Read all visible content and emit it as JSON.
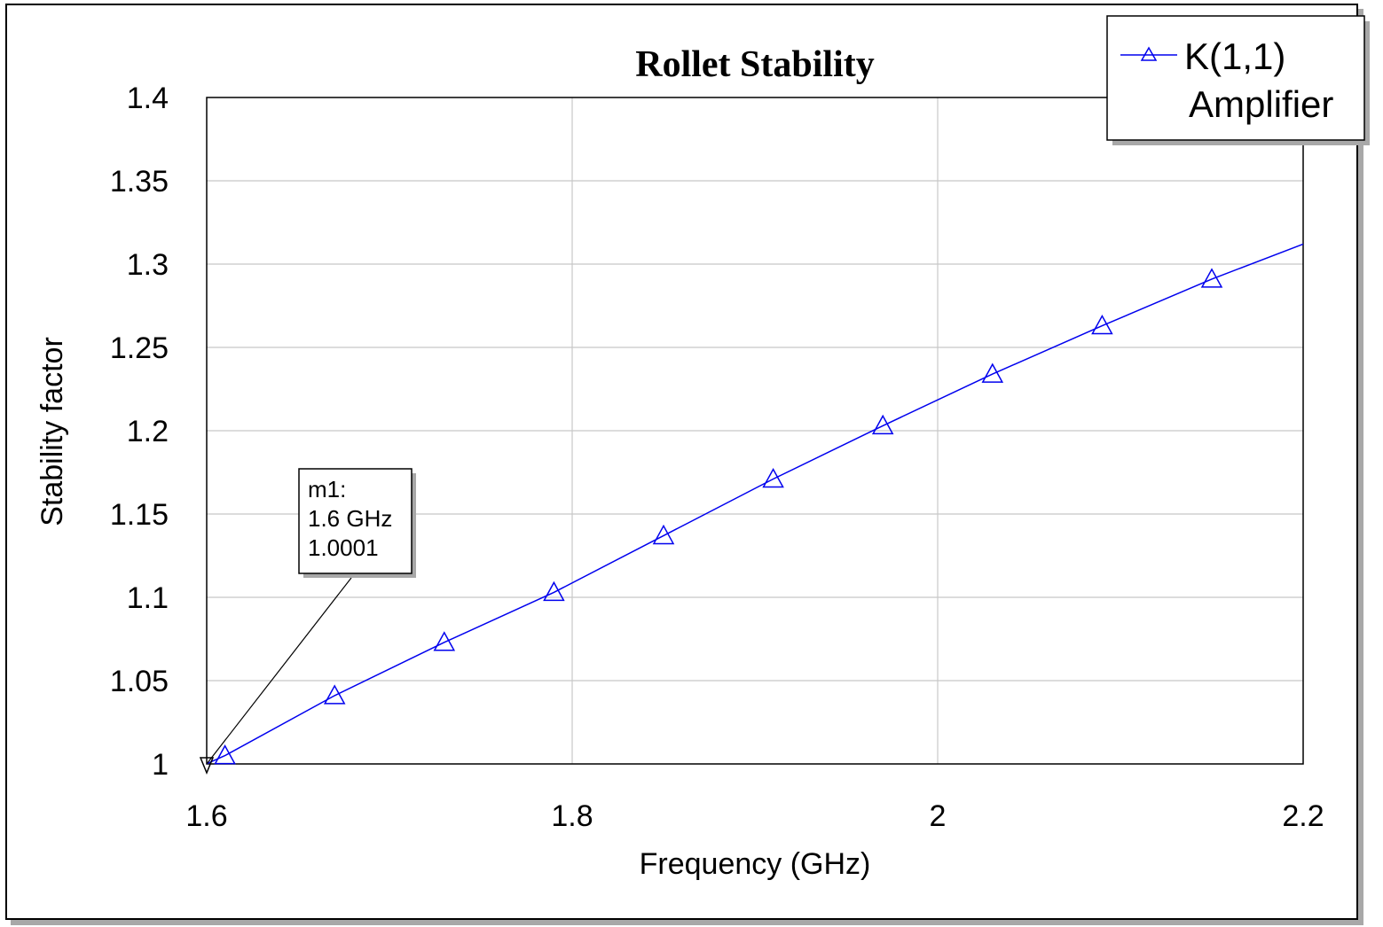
{
  "colors": {
    "series": "#0000ee",
    "grid": "#c8c8c8",
    "axis": "#000000",
    "background": "#ffffff"
  },
  "chart_data": {
    "type": "line",
    "title": "Rollet Stability",
    "xlabel": "Frequency (GHz)",
    "ylabel": "Stability factor",
    "xlim": [
      1.6,
      2.2
    ],
    "ylim": [
      1.0,
      1.4
    ],
    "x_ticks": [
      "1.6",
      "1.8",
      "2",
      "2.2"
    ],
    "y_ticks": [
      "1",
      "1.05",
      "1.1",
      "1.15",
      "1.2",
      "1.25",
      "1.3",
      "1.35",
      "1.4"
    ],
    "grid": true,
    "legend_position": "top-right",
    "legend": {
      "label": "K(1,1)",
      "sublabel": "Amplifier"
    },
    "series": [
      {
        "name": "K(1,1)",
        "marker": "triangle-up",
        "x": [
          1.6,
          1.61,
          1.67,
          1.73,
          1.79,
          1.85,
          1.91,
          1.97,
          2.03,
          2.09,
          2.15,
          2.2
        ],
        "y": [
          1.0001,
          1.005,
          1.041,
          1.073,
          1.103,
          1.137,
          1.171,
          1.203,
          1.234,
          1.263,
          1.291,
          1.312
        ],
        "marker_x": [
          1.61,
          1.67,
          1.73,
          1.79,
          1.85,
          1.91,
          1.97,
          2.03,
          2.09,
          2.15
        ],
        "marker_y": [
          1.005,
          1.041,
          1.073,
          1.103,
          1.137,
          1.171,
          1.203,
          1.234,
          1.263,
          1.291
        ]
      }
    ],
    "markers": [
      {
        "name": "m1:",
        "x": 1.6,
        "y": 1.0001,
        "x_text": "1.6 GHz",
        "y_text": "1.0001"
      }
    ]
  }
}
